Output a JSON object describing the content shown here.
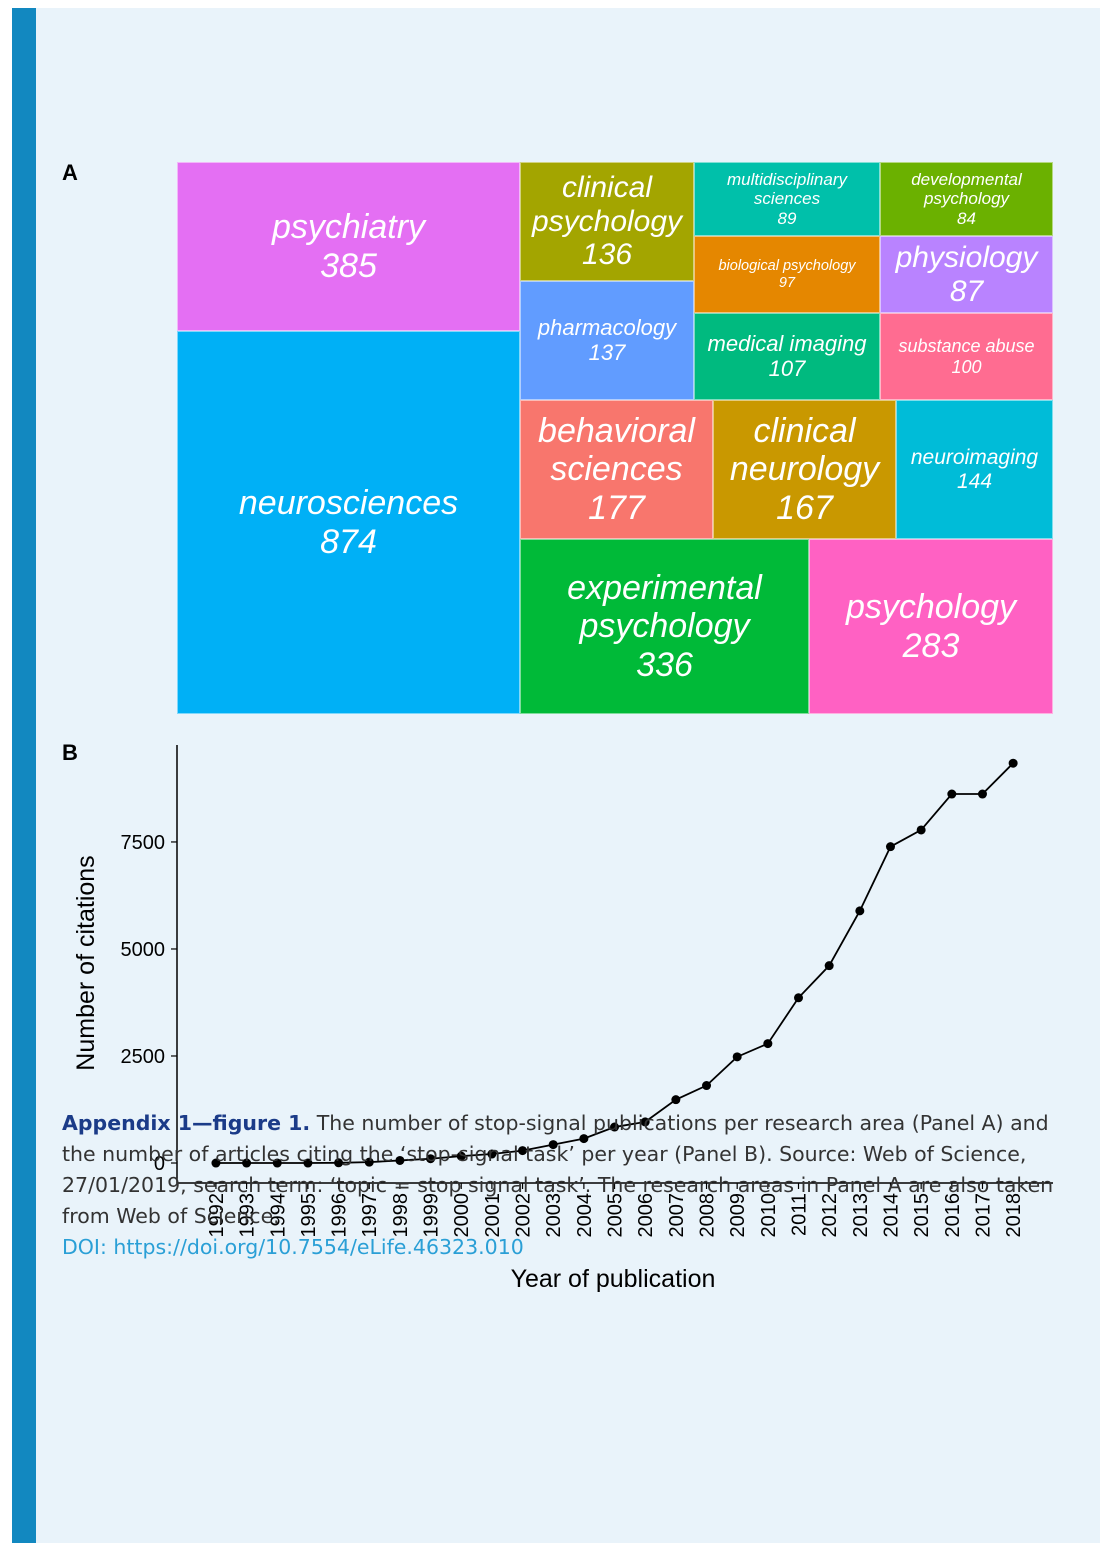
{
  "chart_data": [
    {
      "type": "treemap",
      "panel_label": "A",
      "categories": [
        "psychiatry",
        "neurosciences",
        "clinical psychology",
        "pharmacology",
        "multidisciplinary sciences",
        "developmental psychology",
        "biological psychology",
        "physiology",
        "medical imaging",
        "substance abuse",
        "behavioral sciences",
        "clinical neurology",
        "neuroimaging",
        "experimental psychology",
        "psychology"
      ],
      "values": [
        385,
        874,
        136,
        137,
        89,
        84,
        97,
        87,
        107,
        100,
        177,
        167,
        144,
        336,
        283
      ],
      "colors": [
        "#e46ff3",
        "#00b0f6",
        "#a3a500",
        "#619cff",
        "#00c0aa",
        "#6bb100",
        "#e58700",
        "#b983ff",
        "#00ba7f",
        "#ff6c91",
        "#f8766d",
        "#c99800",
        "#00bcd8",
        "#00ba38",
        "#ff61c3"
      ]
    },
    {
      "type": "line",
      "panel_label": "B",
      "x_label": "Year of publication",
      "y_label": "Number of citations",
      "x": [
        1992,
        1993,
        1994,
        1995,
        1996,
        1997,
        1998,
        1999,
        2000,
        2001,
        2002,
        2003,
        2004,
        2005,
        2006,
        2007,
        2008,
        2009,
        2010,
        2011,
        2012,
        2013,
        2014,
        2015,
        2016,
        2017,
        2018
      ],
      "values": [
        0,
        0,
        0,
        0,
        5,
        20,
        60,
        100,
        160,
        210,
        290,
        430,
        570,
        840,
        960,
        1480,
        1810,
        2480,
        2790,
        3860,
        4610,
        5890,
        7390,
        7780,
        8620,
        8620,
        9340
      ],
      "color": "#000000",
      "xlim": [
        1990.73,
        2019.3
      ],
      "ylim": [
        -467,
        9765
      ],
      "xticks": [
        1992,
        1993,
        1994,
        1995,
        1996,
        1997,
        1998,
        1999,
        2000,
        2001,
        2002,
        2003,
        2004,
        2005,
        2006,
        2007,
        2008,
        2009,
        2010,
        2011,
        2012,
        2013,
        2014,
        2015,
        2016,
        2017,
        2018
      ],
      "yticks": [
        0,
        2500,
        5000,
        7500
      ],
      "grid": false
    }
  ],
  "caption": {
    "label": "Appendix 1—figure 1.",
    "text": "The number of stop-signal publications per research area (Panel A) and the number of articles citing the ‘stop-signal task’ per year (Panel B). Source: Web of Science, 27/01/2019, search term: ‘topic = stop signal task’. The research areas in Panel A are also taken from Web of Science.",
    "doi": "DOI: https://doi.org/10.7554/eLife.46323.010"
  }
}
